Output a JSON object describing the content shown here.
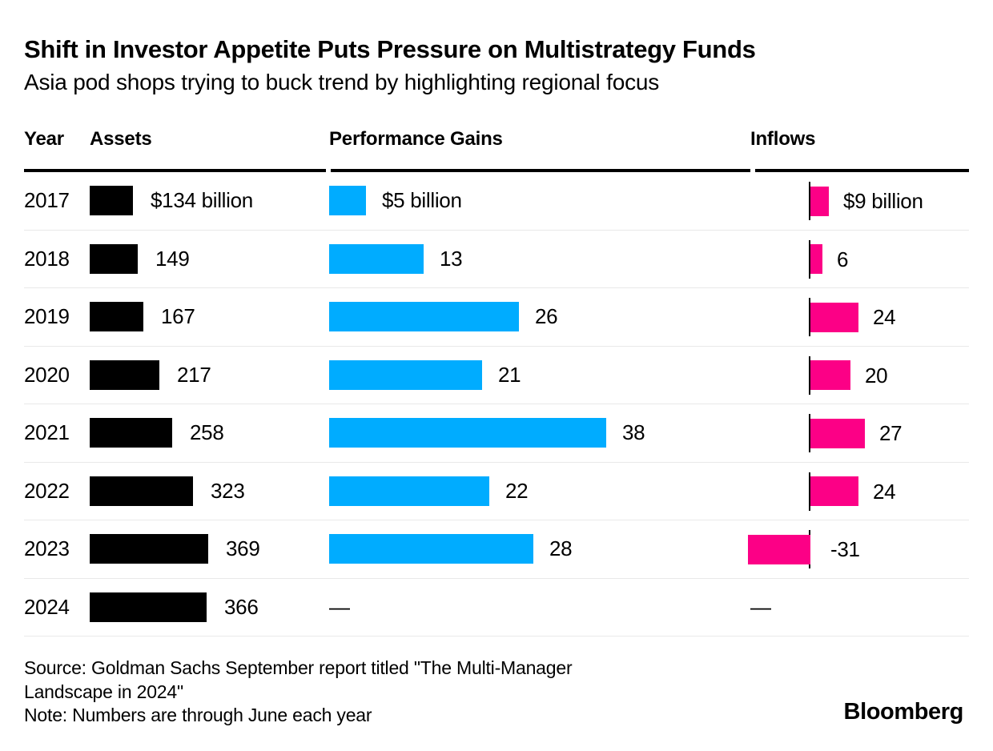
{
  "title": "Shift in Investor Appetite Puts Pressure on Multistrategy Funds",
  "subtitle": "Asia pod shops trying to buck trend by highlighting regional focus",
  "columns": {
    "year": "Year",
    "assets": "Assets",
    "performance": "Performance Gains",
    "inflows": "Inflows"
  },
  "chart_data": {
    "type": "bar",
    "orientation": "horizontal",
    "title": "Shift in Investor Appetite Puts Pressure on Multistrategy Funds",
    "subtitle": "Asia pod shops trying to buck trend by highlighting regional focus",
    "categories": [
      "2017",
      "2018",
      "2019",
      "2020",
      "2021",
      "2022",
      "2023",
      "2024"
    ],
    "series": [
      {
        "name": "Assets",
        "unit": "$ billion",
        "color": "#000000",
        "values": [
          134,
          149,
          167,
          217,
          258,
          323,
          369,
          366
        ],
        "labels": [
          "$134 billion",
          "149",
          "167",
          "217",
          "258",
          "323",
          "369",
          "366"
        ]
      },
      {
        "name": "Performance Gains",
        "unit": "$ billion",
        "color": "#00acff",
        "values": [
          5,
          13,
          26,
          21,
          38,
          22,
          28,
          null
        ],
        "labels": [
          "$5 billion",
          "13",
          "26",
          "21",
          "38",
          "22",
          "28",
          "—"
        ]
      },
      {
        "name": "Inflows",
        "unit": "$ billion",
        "color": "#fc0086",
        "values": [
          9,
          6,
          24,
          20,
          27,
          24,
          -31,
          null
        ],
        "labels": [
          "$9 billion",
          "6",
          "24",
          "20",
          "27",
          "24",
          "-31",
          "—"
        ]
      }
    ],
    "legend_position": "none",
    "grid": false,
    "colors": {
      "assets_bar": "#000000",
      "performance_bar": "#00acff",
      "inflows_bar": "#fc0086",
      "row_separator": "#e9e9e9"
    }
  },
  "footer": {
    "source_lines": [
      "Source: Goldman Sachs September report titled \"The Multi-Manager",
      "Landscape in 2024\""
    ],
    "note": "Note: Numbers are through June each year",
    "brand": "Bloomberg"
  }
}
